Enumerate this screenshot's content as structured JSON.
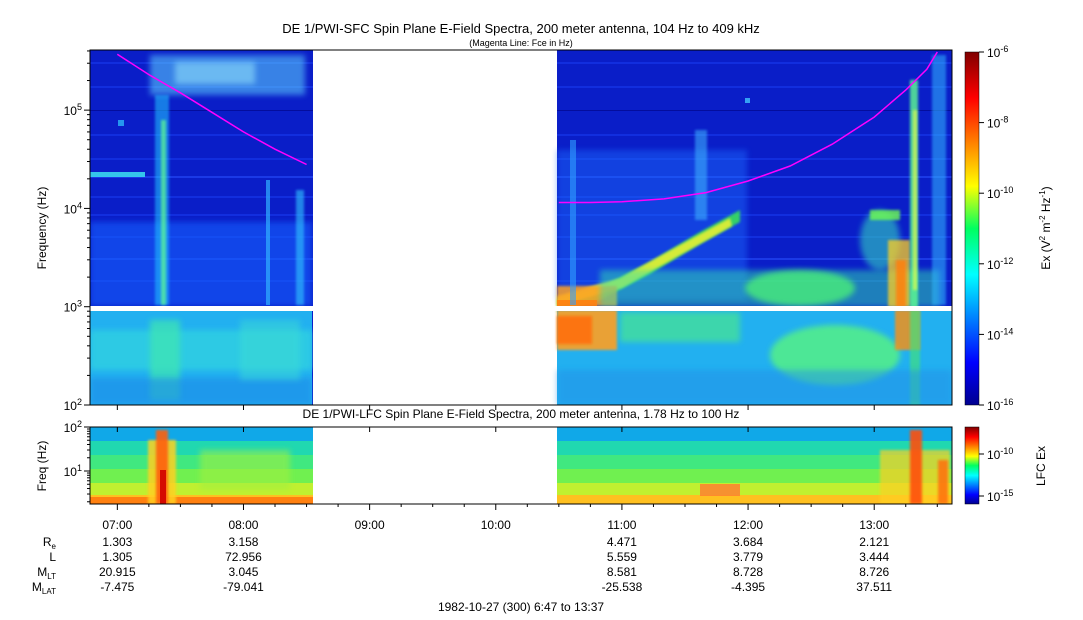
{
  "chart_data": [
    {
      "type": "heatmap",
      "title": "DE 1/PWI-SFC  Spin Plane E-Field Spectra, 200 meter antenna, 104 Hz to 409 kHz",
      "subtitle": "(Magenta Line: Fce in Hz)",
      "ylabel": "Frequency (Hz)",
      "yscale": "log",
      "ylim": [
        100,
        409000
      ],
      "ytick_labels": [
        {
          "base": "10",
          "exp": "2"
        },
        {
          "base": "10",
          "exp": "3"
        },
        {
          "base": "10",
          "exp": "4"
        },
        {
          "base": "10",
          "exp": "5"
        }
      ],
      "colorbar": {
        "label": {
          "main": "Ex (V",
          "sq1": "2",
          "mid": " m",
          "sq2": "-2",
          "mid2": " Hz",
          "sq3": "-1",
          "end": ")"
        },
        "scale": "log",
        "range": [
          "1e-16",
          "1e-6"
        ],
        "tick_labels": [
          {
            "base": "10",
            "exp": "-6"
          },
          {
            "base": "10",
            "exp": "-8"
          },
          {
            "base": "10",
            "exp": "-10"
          },
          {
            "base": "10",
            "exp": "-12"
          },
          {
            "base": "10",
            "exp": "-14"
          },
          {
            "base": "10",
            "exp": "-16"
          }
        ]
      },
      "data_gap": [
        "08:32",
        "10:28"
      ],
      "series": [
        {
          "name": "Fce",
          "color": "#ff00ff",
          "segments": [
            {
              "times": [
                "07:00",
                "07:15",
                "07:30",
                "07:45",
                "08:00",
                "08:15",
                "08:30"
              ],
              "hz": [
                370000,
                230000,
                150000,
                95000,
                60000,
                40000,
                28000
              ]
            },
            {
              "times": [
                "10:30",
                "10:45",
                "11:00",
                "11:20",
                "11:40",
                "12:00",
                "12:20",
                "12:40",
                "13:00",
                "13:15",
                "13:25",
                "13:30"
              ],
              "hz": [
                11500,
                11500,
                11700,
                12500,
                14500,
                19000,
                27000,
                45000,
                85000,
                160000,
                260000,
                390000
              ]
            }
          ]
        }
      ]
    },
    {
      "type": "heatmap",
      "title": "DE 1/PWI-LFC  Spin Plane E-Field Spectra, 200 meter antenna, 1.78 Hz to 100 Hz",
      "ylabel": "Freq (Hz)",
      "yscale": "log",
      "ylim": [
        1.78,
        100
      ],
      "ytick_labels": [
        {
          "base": "10",
          "exp": "1"
        },
        {
          "base": "10",
          "exp": "2"
        }
      ],
      "colorbar": {
        "label": "LFC Ex",
        "scale": "log",
        "tick_labels": [
          {
            "base": "10",
            "exp": "-10"
          },
          {
            "base": "10",
            "exp": "-15"
          }
        ]
      },
      "data_gap": [
        "08:32",
        "10:28"
      ]
    }
  ],
  "time_axis": {
    "ticks": [
      "07:00",
      "08:00",
      "09:00",
      "10:00",
      "11:00",
      "12:00",
      "13:00"
    ],
    "range": [
      "06:47",
      "13:37"
    ]
  },
  "ephemeris": {
    "rows": [
      {
        "label": {
          "base": "R",
          "sub": "e"
        },
        "values": [
          "1.303",
          "3.158",
          "",
          "",
          "4.471",
          "3.684",
          "2.121"
        ]
      },
      {
        "label": {
          "base": "L",
          "sub": ""
        },
        "values": [
          "1.305",
          "72.956",
          "",
          "",
          "5.559",
          "3.779",
          "3.444"
        ]
      },
      {
        "label": {
          "base": "M",
          "sub": "LT"
        },
        "values": [
          "20.915",
          "3.045",
          "",
          "",
          "8.581",
          "8.728",
          "8.726"
        ]
      },
      {
        "label": {
          "base": "M",
          "sub": "LAT"
        },
        "values": [
          "-7.475",
          "-79.041",
          "",
          "",
          "-25.538",
          "-4.395",
          "37.511"
        ]
      }
    ]
  },
  "footer": "1982-10-27 (300) 6:47 to 13:37",
  "colors": {
    "background_level": "#0a1ec8",
    "gap": "#ffffff",
    "fce_line": "#ff00ff"
  }
}
